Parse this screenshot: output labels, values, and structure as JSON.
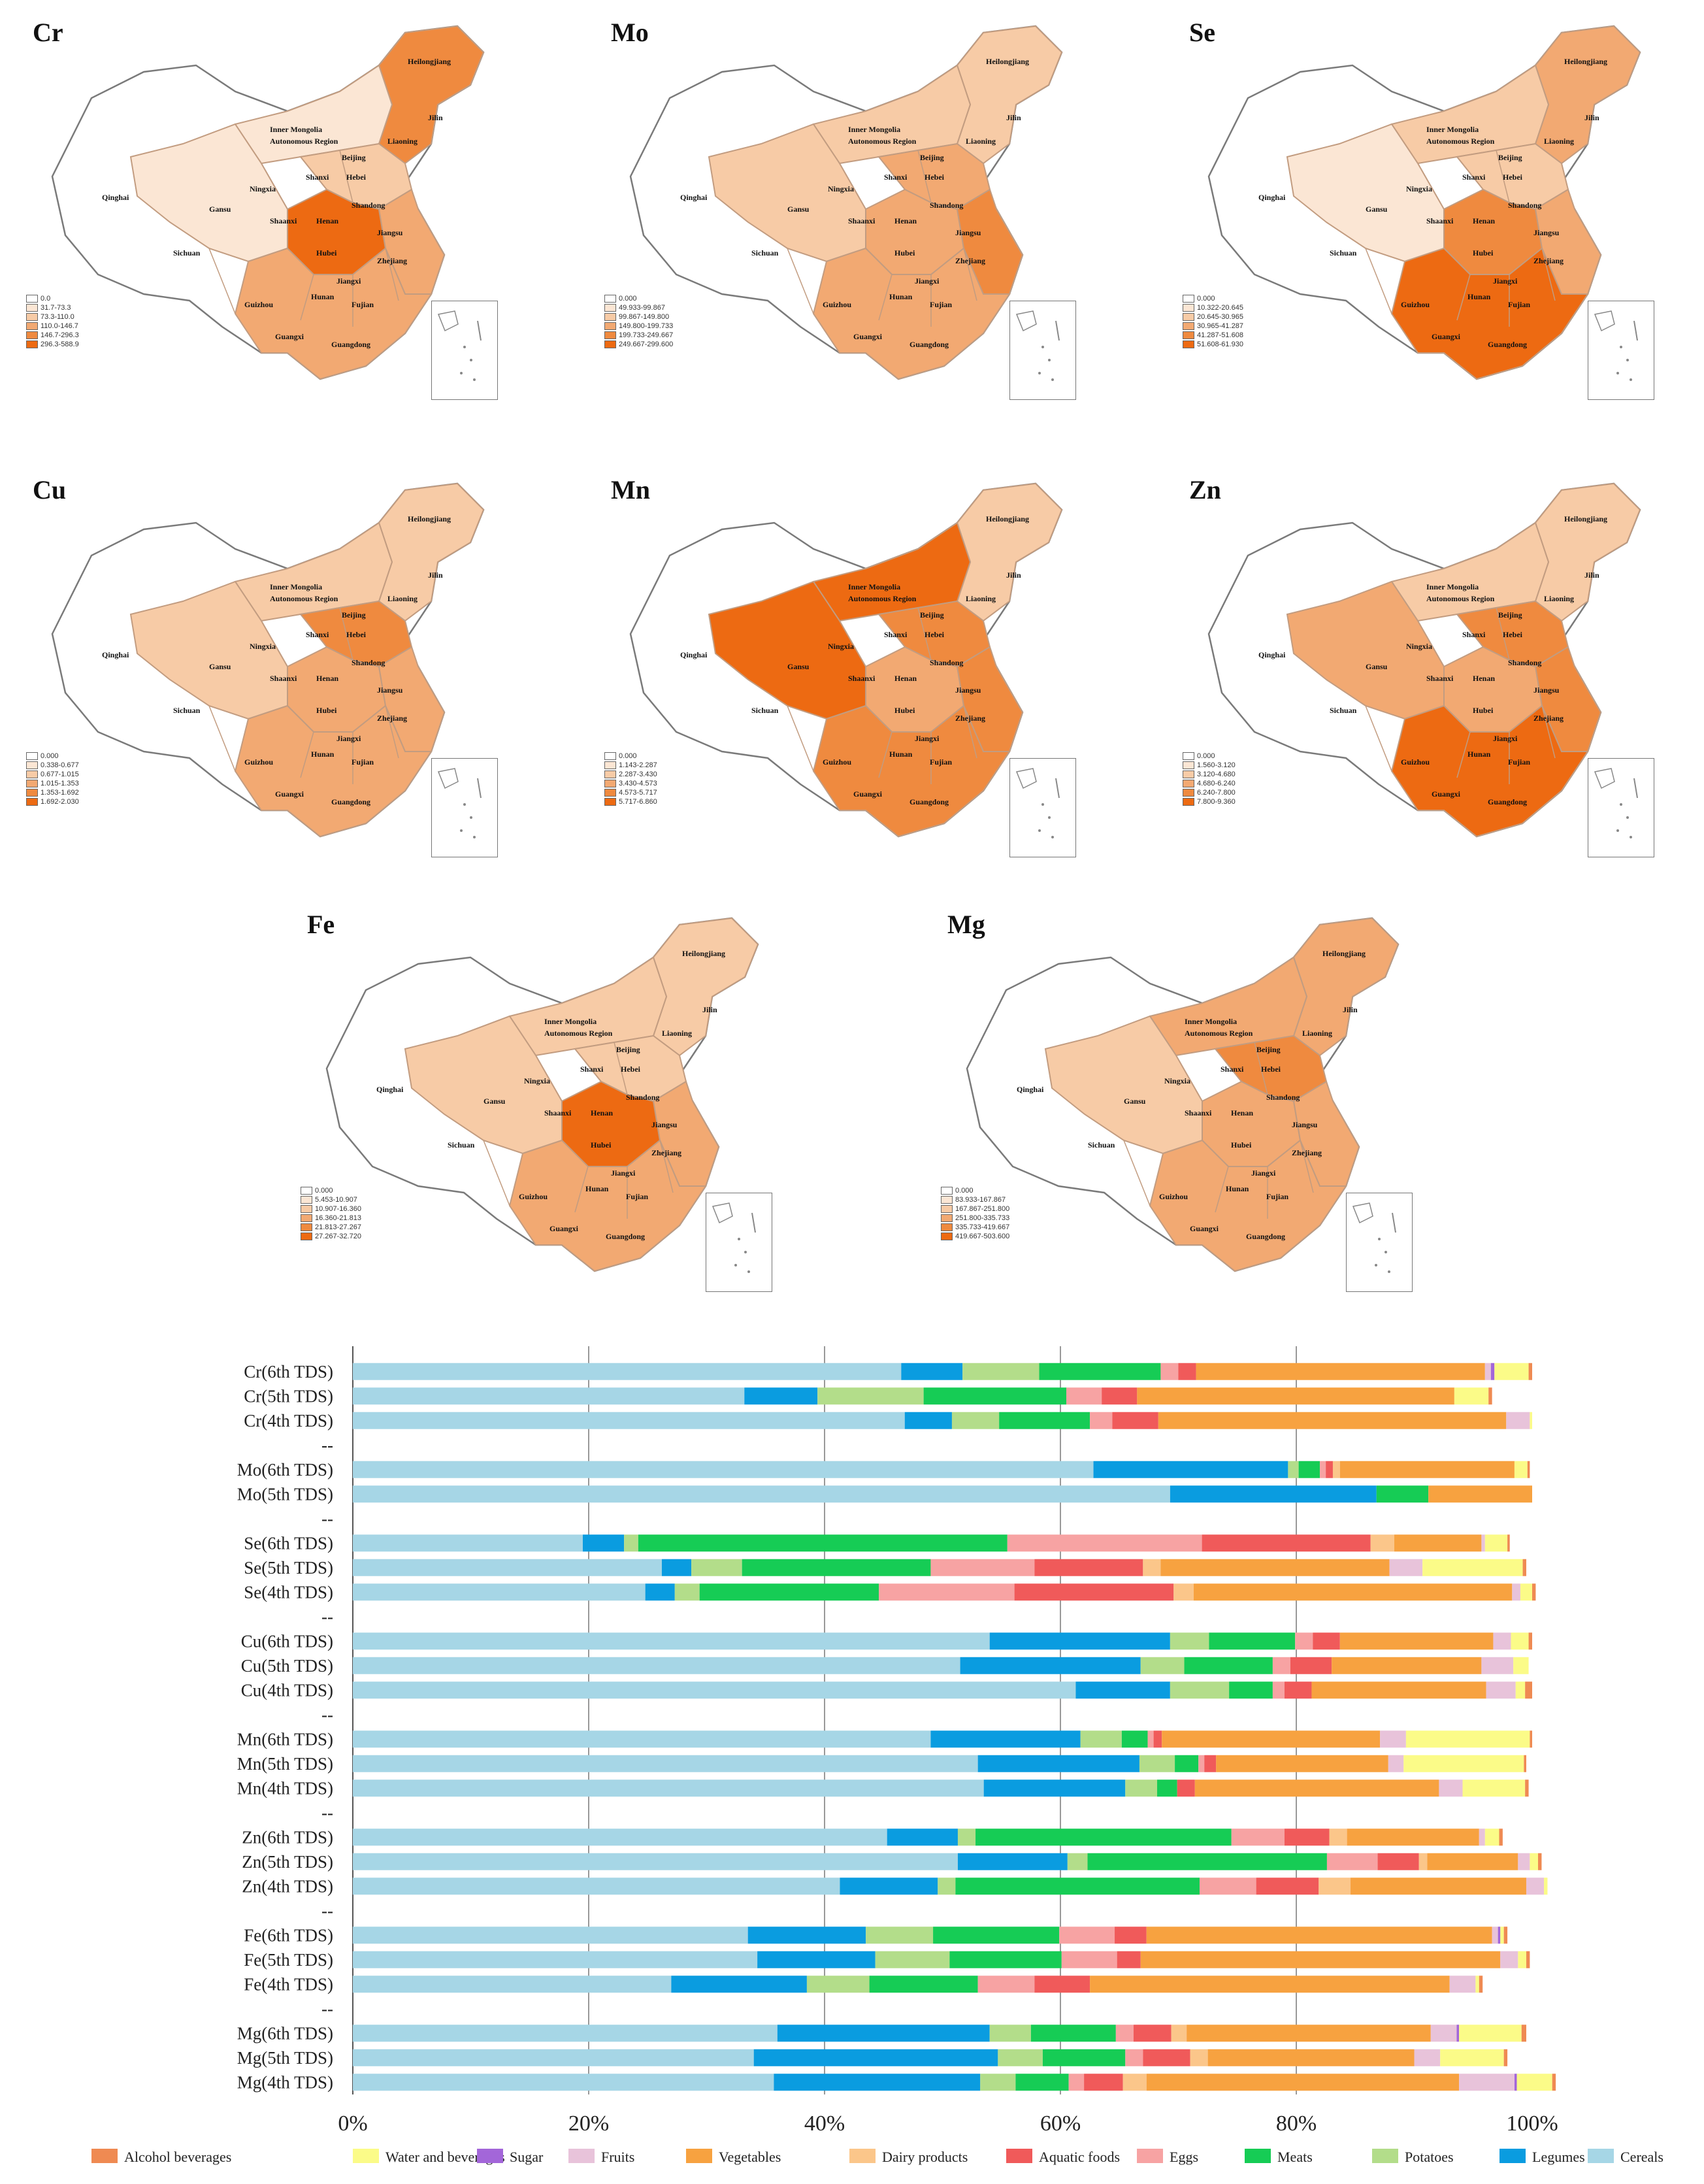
{
  "maps": [
    {
      "id": "cr",
      "element": "Cr",
      "legend": [
        "0.0",
        "31.7-73.3",
        "73.3-110.0",
        "110.0-146.7",
        "146.7-296.3",
        "296.3-588.9"
      ],
      "labels": [
        "Heilongjiang",
        "Jilin",
        "Liaoning",
        "Inner Mongolia",
        "Autonomous Region",
        "Beijing",
        "Hebei",
        "Shandong",
        "Shanxi",
        "Ningxia",
        "Qinghai",
        "Gansu",
        "Shaanxi",
        "Henan",
        "Jiangsu",
        "Sichuan",
        "Hubei",
        "Zhejiang",
        "Jiangxi",
        "Hunan",
        "Guizhou",
        "Fujian",
        "Guangxi",
        "Guangdong"
      ]
    },
    {
      "id": "mo",
      "element": "Mo",
      "legend": [
        "0.000",
        "49.933-99.867",
        "99.867-149.800",
        "149.800-199.733",
        "199.733-249.667",
        "249.667-299.600"
      ],
      "labels": [
        "Heilongjiang",
        "Jilin",
        "Liaoning",
        "Inner Mongolia",
        "Autonomous Region",
        "Beijing",
        "Hebei",
        "Shandong",
        "Shanxi",
        "Ningxia",
        "Qinghai",
        "Gansu",
        "Shaanxi",
        "Henan",
        "Jiangsu",
        "Sichuan",
        "Hubei",
        "Zhejiang",
        "Jiangxi",
        "Hunan",
        "Guizhou",
        "Fujian",
        "Guangxi",
        "Guangdong"
      ]
    },
    {
      "id": "se",
      "element": "Se",
      "legend": [
        "0.000",
        "10.322-20.645",
        "20.645-30.965",
        "30.965-41.287",
        "41.287-51.608",
        "51.608-61.930"
      ],
      "labels": [
        "Heilongjiang",
        "Jilin",
        "Liaoning",
        "Inner Mongolia",
        "Autonomous Region",
        "Beijing",
        "Hebei",
        "Shandong",
        "Shanxi",
        "Ningxia",
        "Qinghai",
        "Gansu",
        "Shaanxi",
        "Henan",
        "Jiangsu",
        "Sichuan",
        "Hubei",
        "Zhejiang",
        "Jiangxi",
        "Hunan",
        "Guizhou",
        "Fujian",
        "Guangxi",
        "Guangdong"
      ]
    },
    {
      "id": "cu",
      "element": "Cu",
      "legend": [
        "0.000",
        "0.338-0.677",
        "0.677-1.015",
        "1.015-1.353",
        "1.353-1.692",
        "1.692-2.030"
      ],
      "labels": [
        "Heilongjiang",
        "Jilin",
        "Liaoning",
        "Inner Mongolia",
        "Autonomous Region",
        "Beijing",
        "Hebei",
        "Shandong",
        "Shanxi",
        "Ningxia",
        "Qinghai",
        "Gansu",
        "Shaanxi",
        "Henan",
        "Jiangsu",
        "Sichuan",
        "Hubei",
        "Zhejiang",
        "Jiangxi",
        "Hunan",
        "Guizhou",
        "Fujian",
        "Guangxi",
        "Guangdong"
      ]
    },
    {
      "id": "mn",
      "element": "Mn",
      "legend": [
        "0.000",
        "1.143-2.287",
        "2.287-3.430",
        "3.430-4.573",
        "4.573-5.717",
        "5.717-6.860"
      ],
      "labels": [
        "Heilongjiang",
        "Jilin",
        "Liaoning",
        "Inner Mongolia",
        "Autonomous Region",
        "Beijing",
        "Hebei",
        "Shandong",
        "Shanxi",
        "Ningxia",
        "Qinghai",
        "Gansu",
        "Shaanxi",
        "Henan",
        "Jiangsu",
        "Sichuan",
        "Hubei",
        "Zhejiang",
        "Jiangxi",
        "Hunan",
        "Guizhou",
        "Fujian",
        "Guangxi",
        "Guangdong"
      ]
    },
    {
      "id": "zn",
      "element": "Zn",
      "legend": [
        "0.000",
        "1.560-3.120",
        "3.120-4.680",
        "4.680-6.240",
        "6.240-7.800",
        "7.800-9.360"
      ],
      "labels": [
        "Heilongjiang",
        "Jilin",
        "Liaoning",
        "Inner Mongolia",
        "Autonomous Region",
        "Beijing",
        "Hebei",
        "Shandong",
        "Shanxi",
        "Ningxia",
        "Qinghai",
        "Gansu",
        "Shaanxi",
        "Henan",
        "Jiangsu",
        "Sichuan",
        "Hubei",
        "Zhejiang",
        "Jiangxi",
        "Hunan",
        "Guizhou",
        "Fujian",
        "Guangxi",
        "Guangdong"
      ]
    },
    {
      "id": "fe",
      "element": "Fe",
      "legend": [
        "0.000",
        "5.453-10.907",
        "10.907-16.360",
        "16.360-21.813",
        "21.813-27.267",
        "27.267-32.720"
      ],
      "labels": [
        "Heilongjiang",
        "Jilin",
        "Liaoning",
        "Inner Mongolia",
        "Autonomous Region",
        "Beijing",
        "Hebei",
        "Shandong",
        "Shanxi",
        "Ningxia",
        "Qinghai",
        "Gansu",
        "Shaanxi",
        "Henan",
        "Jiangsu",
        "Sichuan",
        "Hubei",
        "Zhejiang",
        "Jiangxi",
        "Hunan",
        "Guizhou",
        "Fujian",
        "Guangxi",
        "Guangdong"
      ]
    },
    {
      "id": "mg",
      "element": "Mg",
      "legend": [
        "0.000",
        "83.933-167.867",
        "167.867-251.800",
        "251.800-335.733",
        "335.733-419.667",
        "419.667-503.600"
      ],
      "labels": [
        "Heilongjiang",
        "Jilin",
        "Liaoning",
        "Inner Mongolia",
        "Autonomous Region",
        "Beijing",
        "Hebei",
        "Shandong",
        "Shanxi",
        "Ningxia",
        "Qinghai",
        "Gansu",
        "Shaanxi",
        "Henan",
        "Jiangsu",
        "Sichuan",
        "Hubei",
        "Zhejiang",
        "Jiangxi",
        "Hunan",
        "Guizhou",
        "Fujian",
        "Guangxi",
        "Guangdong"
      ]
    }
  ],
  "map_colors": {
    "level0": "#ffffff",
    "level1": "#fbe6d4",
    "level2": "#f7cba6",
    "level3": "#f2a972",
    "level4": "#ef8a3f",
    "level5": "#ed6a12"
  },
  "chart_data": {
    "type": "bar",
    "orientation": "horizontal-stacked-100",
    "categories": [
      "Cr(6th TDS)",
      "Cr(5th TDS)",
      "Cr(4th TDS)",
      "--",
      "Mo(6th TDS)",
      "Mo(5th TDS)",
      "--",
      "Se(6th TDS)",
      "Se(5th TDS)",
      "Se(4th TDS)",
      "--",
      "Cu(6th TDS)",
      "Cu(5th TDS)",
      "Cu(4th TDS)",
      "--",
      "Mn(6th TDS)",
      "Mn(5th TDS)",
      "Mn(4th TDS)",
      "--",
      "Zn(6th TDS)",
      "Zn(5th TDS)",
      "Zn(4th TDS)",
      "--",
      "Fe(6th TDS)",
      "Fe(5th TDS)",
      "Fe(4th TDS)",
      "--",
      "Mg(6th TDS)",
      "Mg(5th TDS)",
      "Mg(4th TDS)"
    ],
    "stack_order": [
      "Cereals",
      "Legumes",
      "Potatoes",
      "Meats",
      "Eggs",
      "Aquatic foods",
      "Dairy products",
      "Vegetables",
      "Fruits",
      "Sugar",
      "Water and beverages",
      "Alcohol beverages"
    ],
    "series": [
      {
        "name": "Cereals",
        "color": "#a6d6e6",
        "values": [
          46.5,
          33.2,
          46.8,
          null,
          62.8,
          69.3,
          null,
          19.5,
          26.2,
          24.8,
          null,
          54.0,
          51.5,
          61.3,
          null,
          49.0,
          53.0,
          53.5,
          null,
          45.3,
          51.3,
          41.3,
          null,
          33.5,
          34.3,
          27.0,
          null,
          36.0,
          34.0,
          35.7
        ]
      },
      {
        "name": "Legumes",
        "color": "#0a9ce0",
        "values": [
          5.2,
          6.2,
          4.0,
          null,
          16.5,
          17.5,
          null,
          3.5,
          2.5,
          2.5,
          null,
          15.3,
          15.3,
          8.0,
          null,
          12.7,
          13.7,
          12.0,
          null,
          6.0,
          9.3,
          8.3,
          null,
          10.0,
          10.0,
          11.5,
          null,
          18.0,
          20.7,
          17.5
        ]
      },
      {
        "name": "Potatoes",
        "color": "#b3dd8a",
        "values": [
          6.5,
          9.0,
          4.0,
          null,
          0.9,
          0,
          null,
          1.2,
          4.3,
          2.1,
          null,
          3.3,
          3.7,
          5.0,
          null,
          3.5,
          3.0,
          2.7,
          null,
          1.5,
          1.7,
          1.5,
          null,
          5.7,
          6.3,
          5.3,
          null,
          3.5,
          3.8,
          3.0
        ]
      },
      {
        "name": "Meats",
        "color": "#16cc55",
        "values": [
          10.3,
          12.1,
          7.7,
          null,
          1.8,
          4.4,
          null,
          31.3,
          16.0,
          15.2,
          null,
          7.3,
          7.5,
          3.7,
          null,
          2.2,
          2.0,
          1.7,
          null,
          21.7,
          20.3,
          20.7,
          null,
          10.7,
          9.5,
          9.2,
          null,
          7.2,
          7.0,
          4.5
        ]
      },
      {
        "name": "Eggs",
        "color": "#f7a3a3",
        "values": [
          1.5,
          3.0,
          1.9,
          null,
          0.5,
          0,
          null,
          16.5,
          8.8,
          11.5,
          null,
          1.5,
          1.5,
          1.0,
          null,
          0.5,
          0.5,
          0,
          null,
          4.5,
          4.3,
          4.8,
          null,
          4.7,
          4.7,
          4.8,
          null,
          1.5,
          1.5,
          1.3
        ]
      },
      {
        "name": "Aquatic foods",
        "color": "#f05a5a",
        "values": [
          1.5,
          3.0,
          3.9,
          null,
          0.6,
          0,
          null,
          14.3,
          9.2,
          13.5,
          null,
          2.3,
          3.5,
          2.3,
          null,
          0.7,
          1.0,
          1.5,
          null,
          3.8,
          3.5,
          5.3,
          null,
          2.7,
          2.0,
          4.7,
          null,
          3.2,
          4.0,
          3.3
        ]
      },
      {
        "name": "Dairy products",
        "color": "#fbc68a",
        "values": [
          0,
          0,
          0,
          null,
          0.6,
          0,
          null,
          2.0,
          1.5,
          1.7,
          null,
          0,
          0,
          0,
          null,
          0,
          0,
          0,
          null,
          1.5,
          0.7,
          2.7,
          null,
          0,
          0,
          0,
          null,
          1.3,
          1.5,
          2.0
        ]
      },
      {
        "name": "Vegetables",
        "color": "#f7a240",
        "values": [
          24.5,
          26.9,
          29.5,
          null,
          14.8,
          8.8,
          null,
          7.4,
          19.4,
          27.0,
          null,
          13.0,
          12.7,
          14.8,
          null,
          18.5,
          14.6,
          20.7,
          null,
          11.2,
          7.7,
          14.9,
          null,
          29.3,
          30.5,
          30.5,
          null,
          20.7,
          17.5,
          26.5
        ]
      },
      {
        "name": "Fruits",
        "color": "#e8c3da",
        "values": [
          0.5,
          0,
          2.0,
          null,
          0,
          0,
          null,
          0.3,
          2.8,
          0.7,
          null,
          1.5,
          2.7,
          2.5,
          null,
          2.2,
          1.3,
          2.0,
          null,
          0.5,
          1.0,
          1.5,
          null,
          0.5,
          1.5,
          2.2,
          null,
          2.2,
          2.2,
          4.7
        ]
      },
      {
        "name": "Sugar",
        "color": "#a366d9",
        "values": [
          0.3,
          0,
          0,
          null,
          0,
          0,
          null,
          0,
          0,
          0,
          null,
          0,
          0,
          0,
          null,
          0,
          0,
          0,
          null,
          0,
          0,
          0,
          null,
          0.2,
          0,
          0,
          null,
          0.2,
          0,
          0.2
        ]
      },
      {
        "name": "Water and beverages",
        "color": "#fbfb88",
        "values": [
          2.9,
          2.9,
          0.2,
          null,
          1.1,
          0,
          null,
          1.9,
          8.5,
          1.0,
          null,
          1.5,
          1.3,
          0.8,
          null,
          10.5,
          10.2,
          5.3,
          null,
          1.2,
          0.7,
          0.3,
          null,
          0.3,
          0.7,
          0.3,
          null,
          5.3,
          5.4,
          3.0
        ]
      },
      {
        "name": "Alcohol beverages",
        "color": "#ef8a52",
        "values": [
          0.3,
          0.3,
          0,
          null,
          0.2,
          0,
          null,
          0.2,
          0.3,
          0.3,
          null,
          0.3,
          0,
          0.6,
          null,
          0.2,
          0.2,
          0.3,
          null,
          0.3,
          0.3,
          0,
          null,
          0.3,
          0.3,
          0.3,
          null,
          0.4,
          0.3,
          0.3
        ]
      }
    ],
    "xticks": [
      "0%",
      "20%",
      "40%",
      "60%",
      "80%",
      "100%"
    ],
    "xlim": [
      0,
      100
    ],
    "legend": [
      "Alcohol beverages",
      "Water and beverages",
      "Sugar",
      "Fruits",
      "Vegetables",
      "Dairy products",
      "Aquatic foods",
      "Eggs",
      "Meats",
      "Potatoes",
      "Legumes",
      "Cereals"
    ],
    "legend_position": "bottom"
  }
}
